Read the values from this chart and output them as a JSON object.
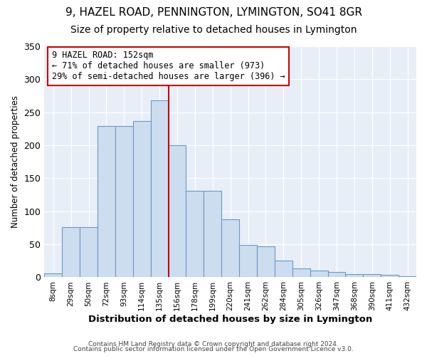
{
  "title": "9, HAZEL ROAD, PENNINGTON, LYMINGTON, SO41 8GR",
  "subtitle": "Size of property relative to detached houses in Lymington",
  "xlabel": "Distribution of detached houses by size in Lymington",
  "ylabel": "Number of detached properties",
  "bar_labels": [
    "8sqm",
    "29sqm",
    "50sqm",
    "72sqm",
    "93sqm",
    "114sqm",
    "135sqm",
    "156sqm",
    "178sqm",
    "199sqm",
    "220sqm",
    "241sqm",
    "262sqm",
    "284sqm",
    "305sqm",
    "326sqm",
    "347sqm",
    "368sqm",
    "390sqm",
    "411sqm",
    "432sqm"
  ],
  "bar_values": [
    6,
    76,
    76,
    229,
    229,
    237,
    268,
    200,
    131,
    131,
    88,
    49,
    47,
    25,
    13,
    10,
    8,
    5,
    5,
    4,
    2
  ],
  "bar_color": "#ccddf0",
  "bar_edge_color": "#6699cc",
  "marker_line_index": 7,
  "marker_label": "9 HAZEL ROAD: 152sqm",
  "annotation_line1": "← 71% of detached houses are smaller (973)",
  "annotation_line2": "29% of semi-detached houses are larger (396) →",
  "annotation_box_color": "#ffffff",
  "annotation_box_edge": "#cc0000",
  "marker_line_color": "#cc0000",
  "ylim": [
    0,
    350
  ],
  "yticks": [
    0,
    50,
    100,
    150,
    200,
    250,
    300,
    350
  ],
  "background_color": "#e8eef8",
  "title_fontsize": 11,
  "subtitle_fontsize": 10,
  "footer1": "Contains HM Land Registry data © Crown copyright and database right 2024.",
  "footer2": "Contains public sector information licensed under the Open Government Licence v3.0."
}
